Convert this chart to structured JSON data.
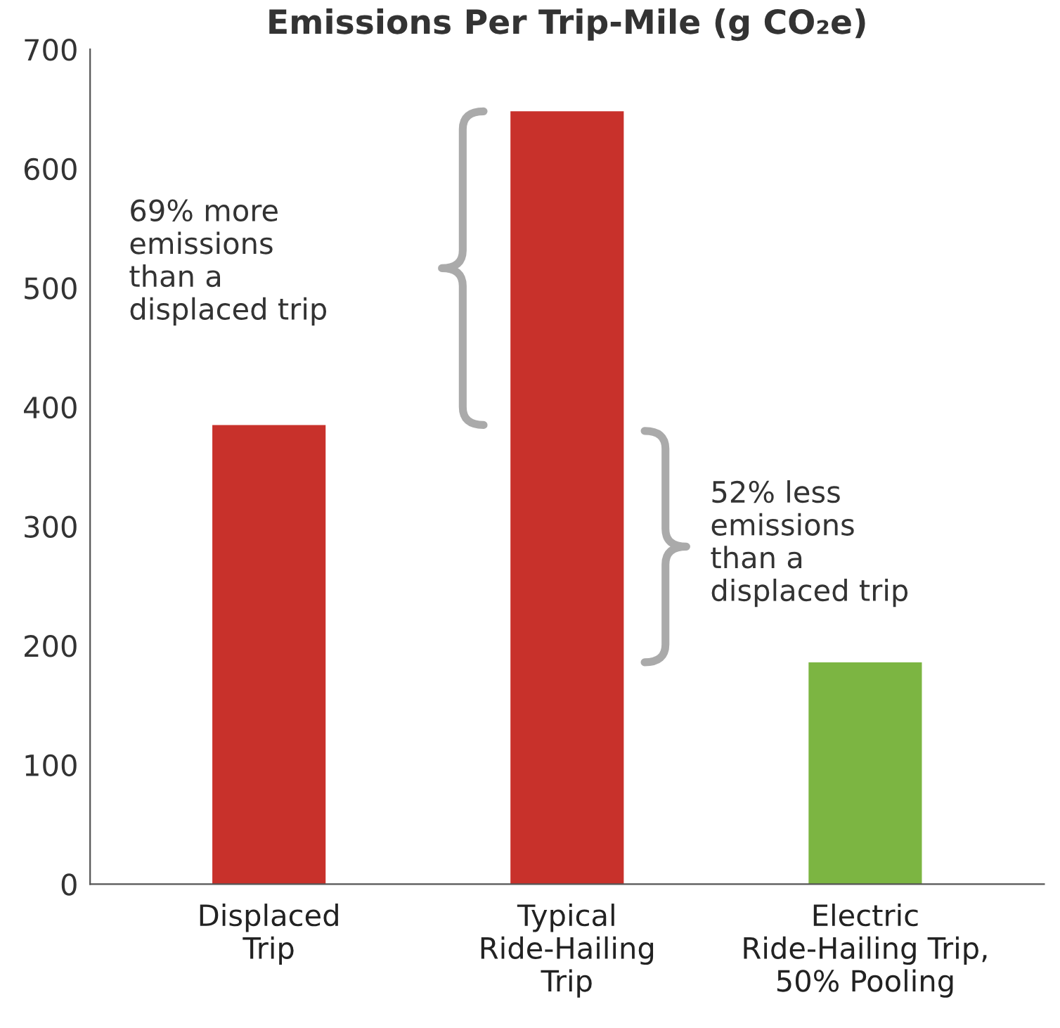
{
  "chart_data": {
    "type": "bar",
    "title": "Emissions Per Trip-Mile (g CO₂e)",
    "categories": [
      "Displaced\nTrip",
      "Typical\nRide-Hailing\nTrip",
      "Electric\nRide-Hailing Trip,\n50% Pooling"
    ],
    "values": [
      385,
      648,
      186
    ],
    "colors": [
      "#c8312b",
      "#c8312b",
      "#7cb542"
    ],
    "ylim": [
      0,
      700
    ],
    "yticks": [
      0,
      100,
      200,
      300,
      400,
      500,
      600,
      700
    ],
    "grid": false,
    "legend": false,
    "annotations": [
      "69% more\nemissions\nthan a\ndisplaced trip",
      "52% less\nemissions\nthan a\ndisplaced trip"
    ]
  }
}
